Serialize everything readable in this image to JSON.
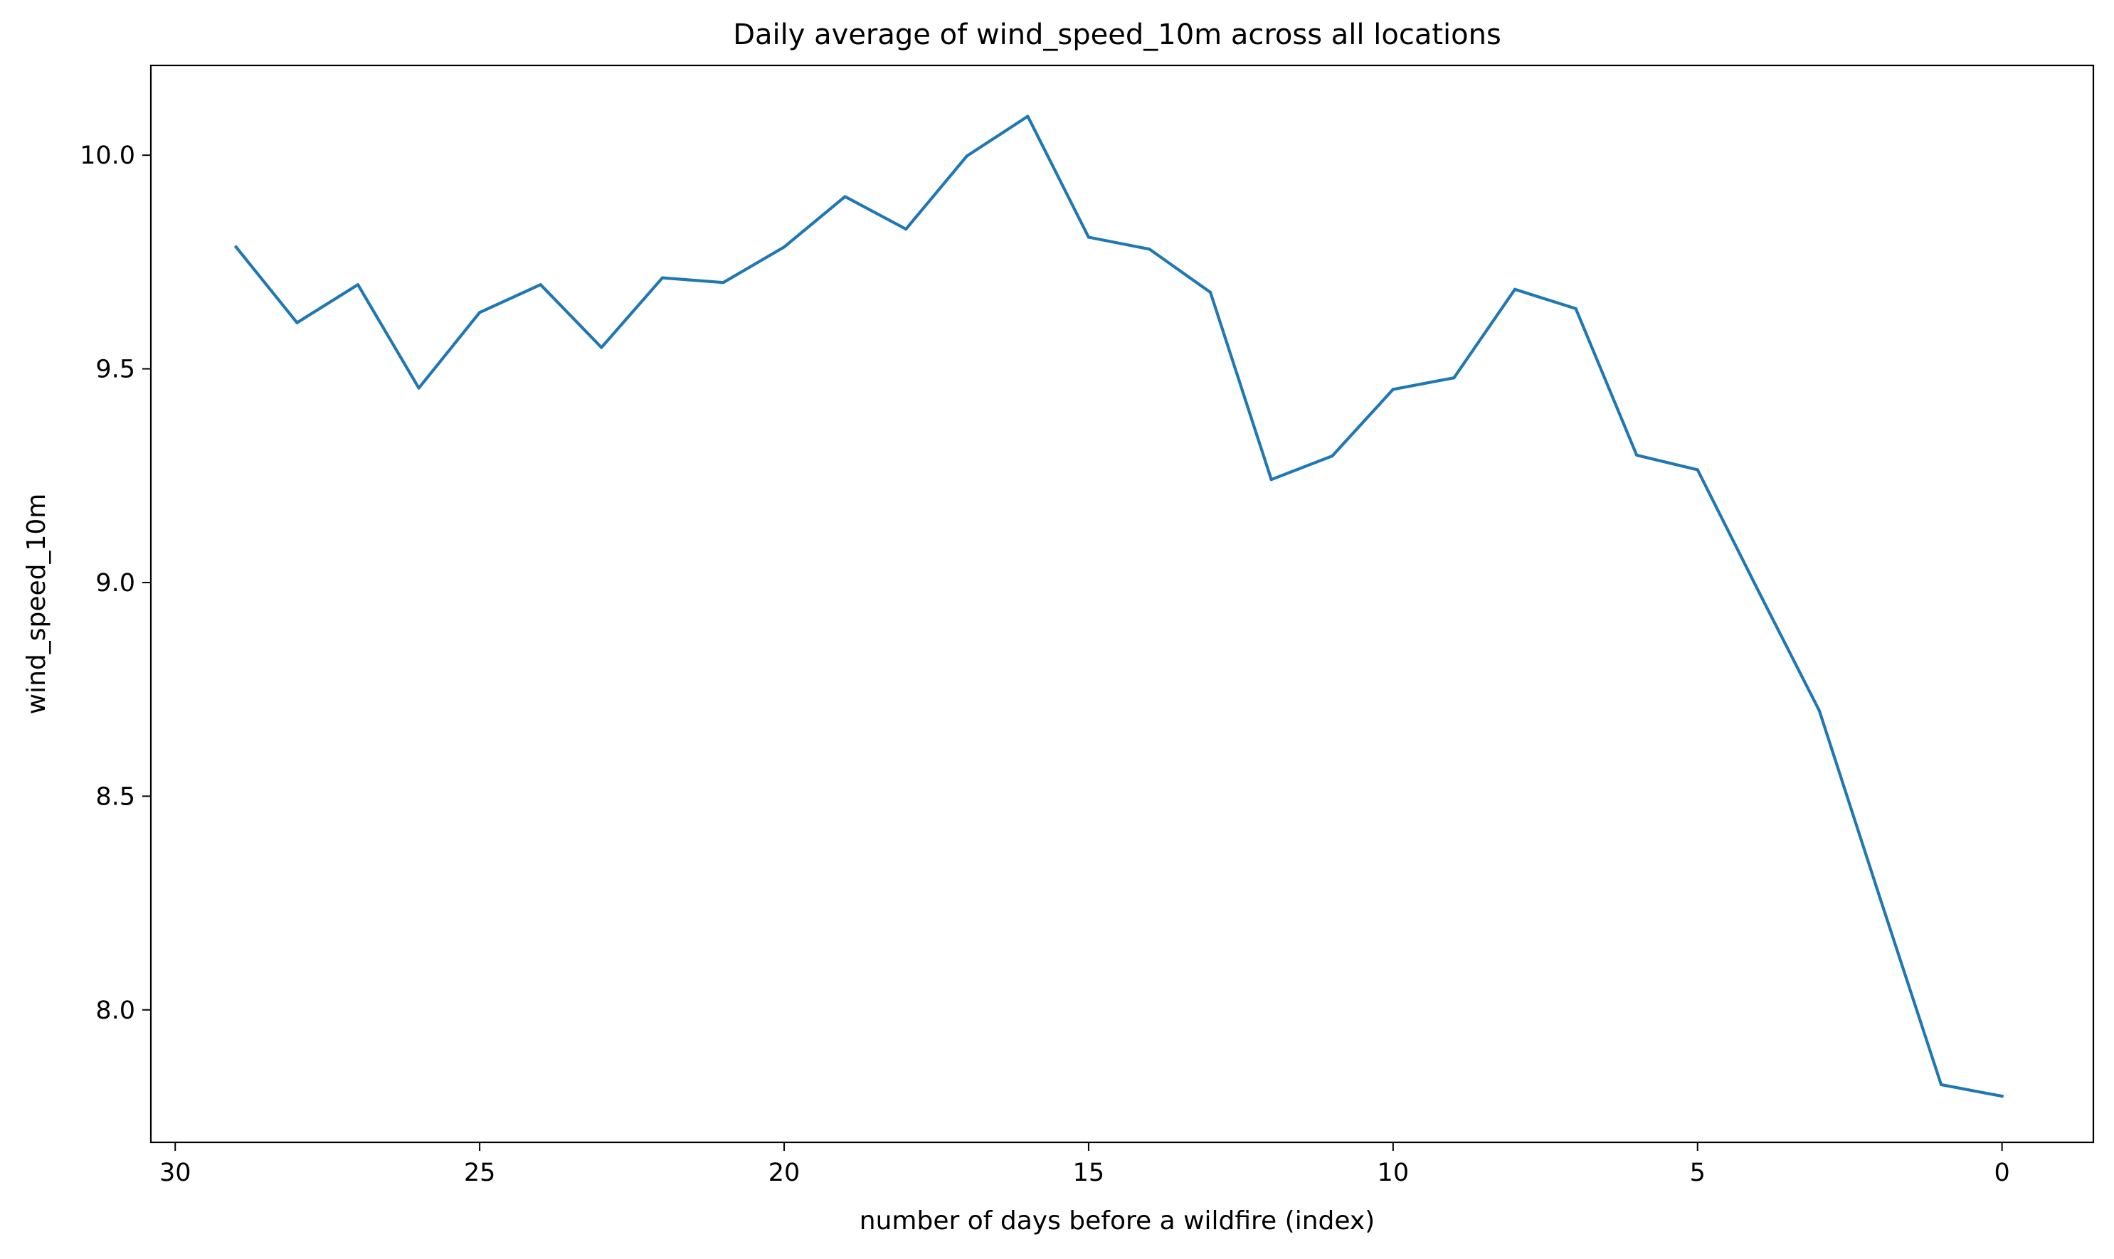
{
  "chart_data": {
    "type": "line",
    "title": "Daily average of wind_speed_10m across all locations",
    "xlabel": "number of days before a wildfire (index)",
    "ylabel": "wind_speed_10m",
    "x_axis_inverted": true,
    "xlim": [
      30.4,
      -1.5
    ],
    "ylim": [
      7.69,
      10.21
    ],
    "xticks": [
      30,
      25,
      20,
      15,
      10,
      5,
      0
    ],
    "xtick_labels": [
      "30",
      "25",
      "20",
      "15",
      "10",
      "5",
      "0"
    ],
    "yticks": [
      8.0,
      8.5,
      9.0,
      9.5,
      10.0
    ],
    "ytick_labels": [
      "8.0",
      "8.5",
      "9.0",
      "9.5",
      "10.0"
    ],
    "grid": false,
    "legend": "none",
    "series": [
      {
        "color": "#1f77b4",
        "x": [
          29,
          28,
          27,
          26,
          25,
          24,
          23,
          22,
          21,
          20,
          19,
          18,
          17,
          16,
          15,
          14,
          13,
          12,
          11,
          10,
          9,
          8,
          7,
          6,
          5,
          4,
          3,
          2,
          1,
          0
        ],
        "y": [
          9.785,
          9.608,
          9.697,
          9.455,
          9.632,
          9.697,
          9.55,
          9.713,
          9.702,
          9.785,
          9.903,
          9.827,
          9.998,
          10.091,
          9.808,
          9.78,
          9.679,
          9.241,
          9.296,
          9.452,
          9.479,
          9.686,
          9.641,
          9.298,
          9.264,
          8.98,
          8.7,
          8.26,
          7.825,
          7.798
        ]
      }
    ]
  }
}
